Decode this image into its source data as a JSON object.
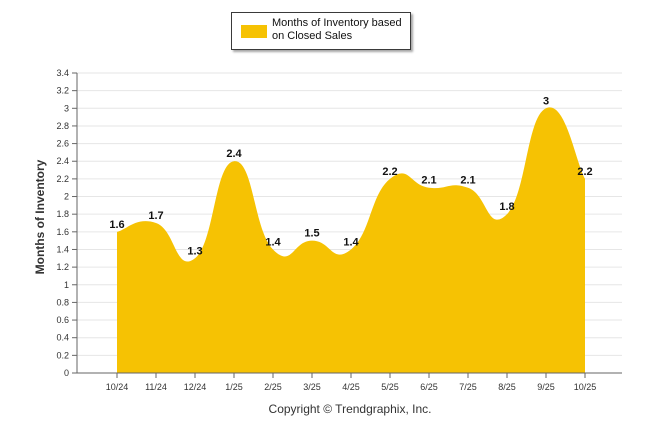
{
  "legend": {
    "label": "Months of Inventory based on Closed Sales"
  },
  "footer": {
    "copyright": "Copyright © Trendgraphix, Inc."
  },
  "colors": {
    "fill": "#f6c203",
    "grid": "#e6e6e6",
    "axis": "#666666",
    "text": "#333333"
  },
  "chart_data": {
    "type": "area",
    "title": "",
    "xlabel": "",
    "ylabel": "Months of Inventory",
    "categories": [
      "10/24",
      "11/24",
      "12/24",
      "1/25",
      "2/25",
      "3/25",
      "4/25",
      "5/25",
      "6/25",
      "7/25",
      "8/25",
      "9/25",
      "10/25"
    ],
    "series": [
      {
        "name": "Months of Inventory based on Closed Sales",
        "values": [
          1.6,
          1.7,
          1.3,
          2.4,
          1.4,
          1.5,
          1.4,
          2.2,
          2.1,
          2.1,
          1.8,
          3,
          2.2
        ]
      }
    ],
    "data_labels": [
      "1.6",
      "1.7",
      "1.3",
      "2.4",
      "1.4",
      "1.5",
      "1.4",
      "2.2",
      "2.1",
      "2.1",
      "1.8",
      "3",
      "2.2"
    ],
    "ylim": [
      0,
      3.4
    ],
    "yticks": [
      "0",
      "0.2",
      "0.4",
      "0.6",
      "0.8",
      "1",
      "1.2",
      "1.4",
      "1.6",
      "1.8",
      "2",
      "2.2",
      "2.4",
      "2.6",
      "2.8",
      "3",
      "3.2",
      "3.4"
    ],
    "grid": true,
    "legend_position": "top-center"
  }
}
